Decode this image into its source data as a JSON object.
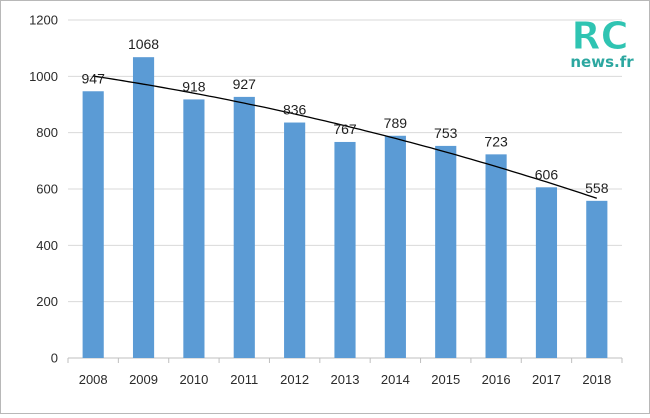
{
  "chart_data": {
    "type": "bar",
    "categories": [
      "2008",
      "2009",
      "2010",
      "2011",
      "2012",
      "2013",
      "2014",
      "2015",
      "2016",
      "2017",
      "2018"
    ],
    "values": [
      947,
      1068,
      918,
      927,
      836,
      767,
      789,
      753,
      723,
      606,
      558
    ],
    "ylim": [
      0,
      1200
    ],
    "yticks": [
      0,
      200,
      400,
      600,
      800,
      1000,
      1200
    ],
    "grid": true,
    "trendline": "polynomial",
    "colors": {
      "bar": "#5b9bd5",
      "trend": "#000000",
      "grid": "#d9d9d9"
    }
  },
  "watermark": {
    "logo_text_top": "RC",
    "logo_text_bottom": "news.fr",
    "colors": {
      "primary": "#2fc4b2",
      "secondary": "#2ca7a0"
    }
  }
}
